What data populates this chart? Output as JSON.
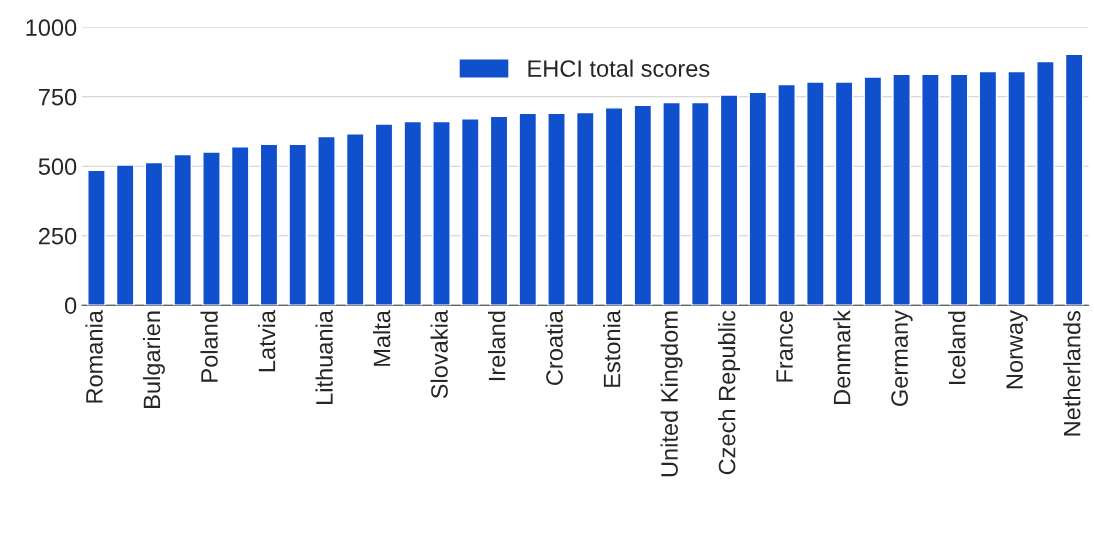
{
  "chart_data": {
    "type": "bar",
    "categories": [
      "Romania",
      null,
      "Bulgarien",
      null,
      "Poland",
      null,
      "Latvia",
      null,
      "Lithuania",
      null,
      "Malta",
      null,
      "Slovakia",
      null,
      "Ireland",
      null,
      "Croatia",
      null,
      "Estonia",
      null,
      "United Kingdom",
      null,
      "Czech Republic",
      null,
      "France",
      null,
      "Denmark",
      null,
      "Germany",
      null,
      "Iceland",
      null,
      "Norway",
      null,
      "Netherlands"
    ],
    "series": [
      {
        "name": "EHCI total scores",
        "color": "#1150cc",
        "values": [
          485,
          504,
          513,
          542,
          551,
          570,
          579,
          579,
          607,
          617,
          652,
          661,
          661,
          671,
          680,
          690,
          690,
          693,
          710,
          719,
          729,
          729,
          756,
          766,
          794,
          803,
          803,
          821,
          831,
          831,
          831,
          841,
          841,
          877,
          903
        ]
      }
    ],
    "ylim": [
      0,
      1000
    ],
    "yticks": [
      0,
      250,
      500,
      750,
      1000
    ],
    "grid": "y",
    "legend": "top"
  }
}
